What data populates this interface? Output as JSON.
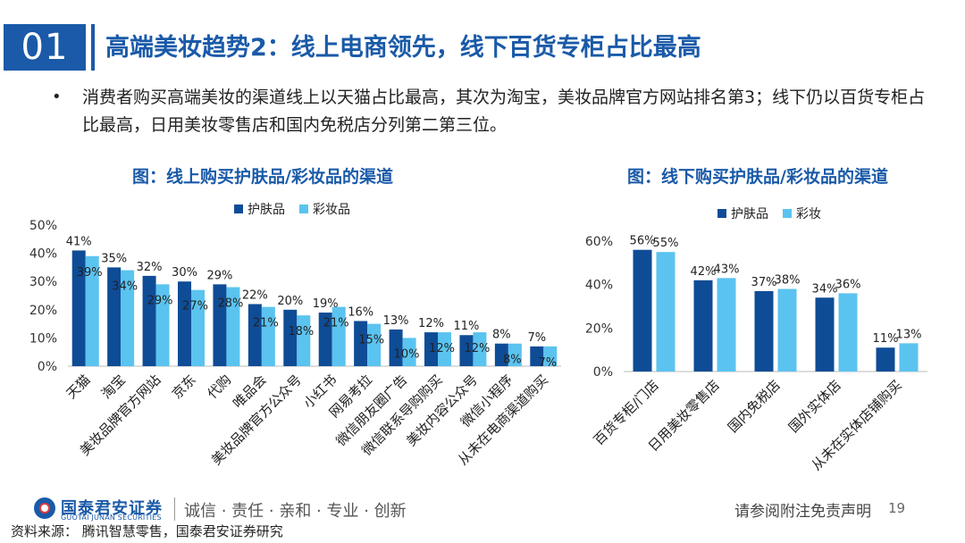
{
  "header": {
    "section_number": "01",
    "title": "高端美妆趋势2：线上电商领先，线下百货专柜占比最高"
  },
  "bullet": {
    "marker": "•",
    "text": "消费者购买高端美妆的渠道线上以天猫占比最高，其次为淘宝，美妆品牌官方网站排名第3；线下仍以百货专柜占比最高，日用美妆零售店和国内免税店分列第二第三位。"
  },
  "colors": {
    "primary": "#1a5aa8",
    "skincare": "#0f4c96",
    "makeup": "#5bc3ef"
  },
  "chart_data": [
    {
      "type": "bar",
      "title": "图：线上购买护肤品/彩妆品的渠道",
      "categories": [
        "天猫",
        "淘宝",
        "美妆品牌官方网站",
        "京东",
        "代购",
        "唯品会",
        "美妆品牌官方公众号",
        "小红书",
        "网易考拉",
        "微信朋友圈广告",
        "微信联系导购购买",
        "美妆内容公众号",
        "微信小程序",
        "从未在电商渠道购买"
      ],
      "series": [
        {
          "name": "护肤品",
          "values": [
            41,
            35,
            32,
            30,
            29,
            22,
            20,
            19,
            16,
            13,
            12,
            11,
            8,
            7
          ],
          "labels": [
            "41%",
            "35%",
            "32%",
            "30%",
            "29%",
            "22%",
            "20%",
            "19%",
            "16%",
            "13%",
            "12%",
            "11%",
            "8%",
            "7%"
          ]
        },
        {
          "name": "彩妆品",
          "values": [
            39,
            34,
            29,
            27,
            28,
            21,
            18,
            21,
            15,
            10,
            12,
            12,
            8,
            7
          ],
          "labels": [
            "39%",
            "34%",
            "29%",
            "27%",
            "28%",
            "21%",
            "18%",
            "21%",
            "15%",
            "10%",
            "12%",
            "12%",
            "8%",
            "7%"
          ]
        }
      ],
      "ylim": [
        0,
        50
      ],
      "yticks": [
        "0%",
        "10%",
        "20%",
        "30%",
        "40%",
        "50%"
      ],
      "ytick_values": [
        0,
        10,
        20,
        30,
        40,
        50
      ],
      "legend": "top-center",
      "grid": false
    },
    {
      "type": "bar",
      "title": "图：线下购买护肤品/彩妆品的渠道",
      "categories": [
        "百货专柜/门店",
        "日用美妆零售店",
        "国内免税店",
        "国外实体店",
        "从未在实体店铺购买"
      ],
      "series": [
        {
          "name": "护肤品",
          "values": [
            56,
            42,
            37,
            34,
            11
          ],
          "labels": [
            "56%",
            "42%",
            "37%",
            "34%",
            "11%"
          ]
        },
        {
          "name": "彩妆",
          "values": [
            55,
            43,
            38,
            36,
            13
          ],
          "labels": [
            "55%",
            "43%",
            "38%",
            "36%",
            "13%"
          ]
        }
      ],
      "ylim": [
        0,
        60
      ],
      "yticks": [
        "0%",
        "20%",
        "40%",
        "60%"
      ],
      "ytick_values": [
        0,
        20,
        40,
        60
      ],
      "legend": "top-center",
      "grid": false
    }
  ],
  "footer": {
    "company_cn": "国泰君安证券",
    "company_en": "GUOTAI JUNAN SECURITIES",
    "slogan": "诚信 · 责任 · 亲和 · 专业 · 创新",
    "disclaimer": "请参阅附注免责声明",
    "page_number": "19",
    "source": "资料来源： 腾讯智慧零售，国泰君安证券研究"
  }
}
